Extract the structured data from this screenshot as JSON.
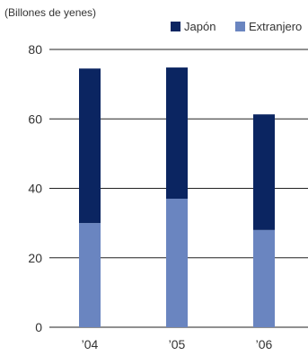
{
  "chart_data": {
    "type": "bar",
    "stacked": true,
    "title": "",
    "unit_label": "(Billones de yenes)",
    "xlabel": "",
    "ylabel": "",
    "categories": [
      "’04",
      "’05",
      "’06"
    ],
    "series": [
      {
        "name": "Extranjero",
        "color": "#6a85c0",
        "values": [
          30,
          37,
          28
        ]
      },
      {
        "name": "Japón",
        "color": "#0b2561",
        "values": [
          44.5,
          37.8,
          33.3
        ]
      }
    ],
    "ylim": [
      0,
      80
    ],
    "yticks": [
      0,
      20,
      40,
      60,
      80
    ],
    "grid": true,
    "legend": "top-right",
    "legend_order": [
      "Japón",
      "Extranjero"
    ]
  }
}
